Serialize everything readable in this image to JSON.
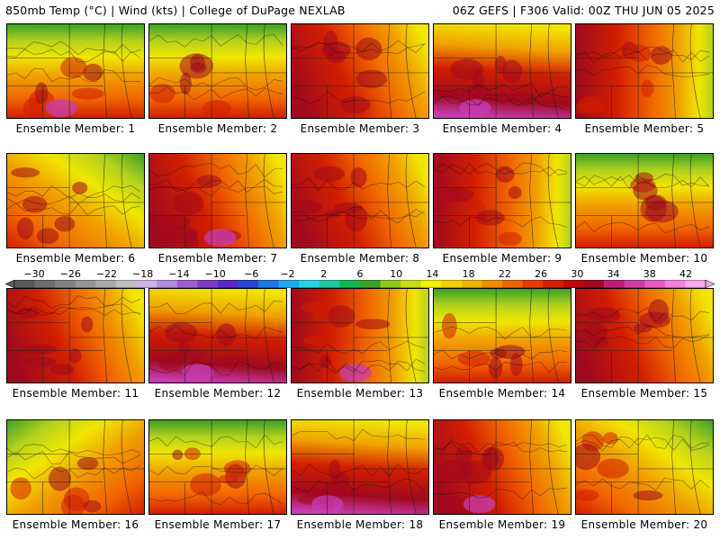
{
  "header": {
    "left": "850mb Temp (°C) | Wind (kts) | College of DuPage NEXLAB",
    "right": "06Z GEFS | F306 Valid: 00Z THU JUN 05 2025"
  },
  "members": [
    {
      "label": "Ensemble Member: 1",
      "style": "cool-north"
    },
    {
      "label": "Ensemble Member: 2",
      "style": "cool-north"
    },
    {
      "label": "Ensemble Member: 3",
      "style": "hot-west"
    },
    {
      "label": "Ensemble Member: 4",
      "style": "hot-south"
    },
    {
      "label": "Ensemble Member: 5",
      "style": "cool-east"
    },
    {
      "label": "Ensemble Member: 6",
      "style": "cool-northeast"
    },
    {
      "label": "Ensemble Member: 7",
      "style": "hot-west"
    },
    {
      "label": "Ensemble Member: 8",
      "style": "hot-west"
    },
    {
      "label": "Ensemble Member: 9",
      "style": "cool-east"
    },
    {
      "label": "Ensemble Member: 10",
      "style": "cool-north"
    },
    {
      "label": "Ensemble Member: 11",
      "style": "hot-west"
    },
    {
      "label": "Ensemble Member: 12",
      "style": "hot-south"
    },
    {
      "label": "Ensemble Member: 13",
      "style": "cool-east"
    },
    {
      "label": "Ensemble Member: 14",
      "style": "cool-north"
    },
    {
      "label": "Ensemble Member: 15",
      "style": "hot-west"
    },
    {
      "label": "Ensemble Member: 16",
      "style": "cool-northwest"
    },
    {
      "label": "Ensemble Member: 17",
      "style": "cool-north"
    },
    {
      "label": "Ensemble Member: 18",
      "style": "hot-south"
    },
    {
      "label": "Ensemble Member: 19",
      "style": "hot-west"
    },
    {
      "label": "Ensemble Member: 20",
      "style": "cool-northeast"
    }
  ],
  "colorbar": {
    "labels": [
      "−30",
      "−26",
      "−22",
      "−18",
      "−14",
      "−10",
      "−6",
      "−2",
      "2",
      "6",
      "10",
      "14",
      "18",
      "22",
      "26",
      "30",
      "34",
      "38",
      "42"
    ],
    "colors": [
      "#5a5a5a",
      "#6e6e6e",
      "#828282",
      "#969696",
      "#aaaaaa",
      "#bebebe",
      "#c8b4e6",
      "#b48cdc",
      "#9b5fd2",
      "#7d3cc8",
      "#5a28c8",
      "#2846d2",
      "#1e78e6",
      "#1eaaf0",
      "#28d2e6",
      "#1ec8a0",
      "#14b450",
      "#3ca028",
      "#8cc81e",
      "#c8dc14",
      "#f0f000",
      "#f0d200",
      "#f0b400",
      "#f08c00",
      "#f06400",
      "#e63c00",
      "#d21e00",
      "#be0a0a",
      "#a00a1e",
      "#be1e78",
      "#d23ca0",
      "#e65ac8",
      "#f082dc",
      "#f5aaeb"
    ]
  },
  "palette": {
    "green": "#3ca028",
    "yellowgreen": "#b4d21e",
    "yellow": "#f0e600",
    "orange": "#f0a000",
    "redorange": "#f06400",
    "red": "#d21e00",
    "darkred": "#a00a1e",
    "magenta": "#c83cb4"
  }
}
